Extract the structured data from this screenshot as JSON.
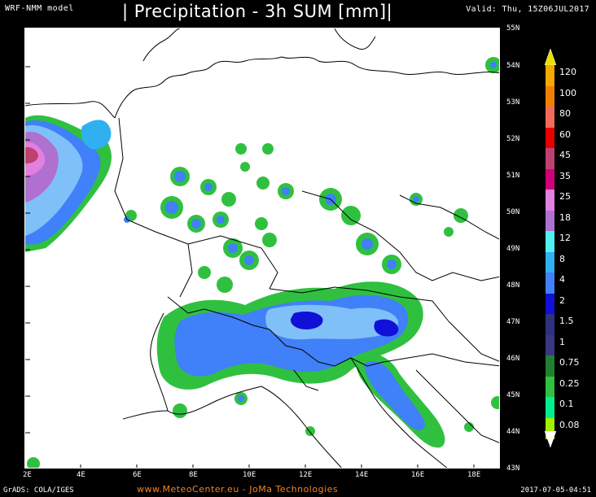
{
  "header": {
    "model": "WRF-NMM model",
    "title": "| Precipitation - 3h SUM [mm]|",
    "valid": "Valid: Thu, 15Z06JUL2017"
  },
  "map": {
    "latitude_labels": [
      "55N",
      "54N",
      "53N",
      "52N",
      "51N",
      "50N",
      "49N",
      "48N",
      "47N",
      "46N",
      "45N",
      "44N",
      "43N"
    ],
    "longitude_labels": [
      "2E",
      "4E",
      "6E",
      "8E",
      "10E",
      "12E",
      "14E",
      "16E",
      "18E"
    ],
    "background_color": "#ffffff",
    "border_color": "#000000"
  },
  "legend": {
    "labels": [
      "120",
      "100",
      "80",
      "60",
      "45",
      "35",
      "25",
      "18",
      "12",
      "8",
      "4",
      "2",
      "1.5",
      "1",
      "0.75",
      "0.25",
      "0.1",
      "0.08"
    ],
    "colors": [
      "#f7a800",
      "#f08000",
      "#f26b5a",
      "#e60000",
      "#c04070",
      "#d0007a",
      "#e080e0",
      "#b070d0",
      "#50f0f0",
      "#30b0f0",
      "#4080f8",
      "#1010d8",
      "#303080",
      "#383880",
      "#208030",
      "#30c040",
      "#00f090",
      "#a0f000"
    ]
  },
  "footer": {
    "grads": "GrADS: COLA/IGES",
    "credit": "www.MeteoCenter.eu   -  JoMa Technologies",
    "timestamp": "2017-07-05-04:51"
  }
}
